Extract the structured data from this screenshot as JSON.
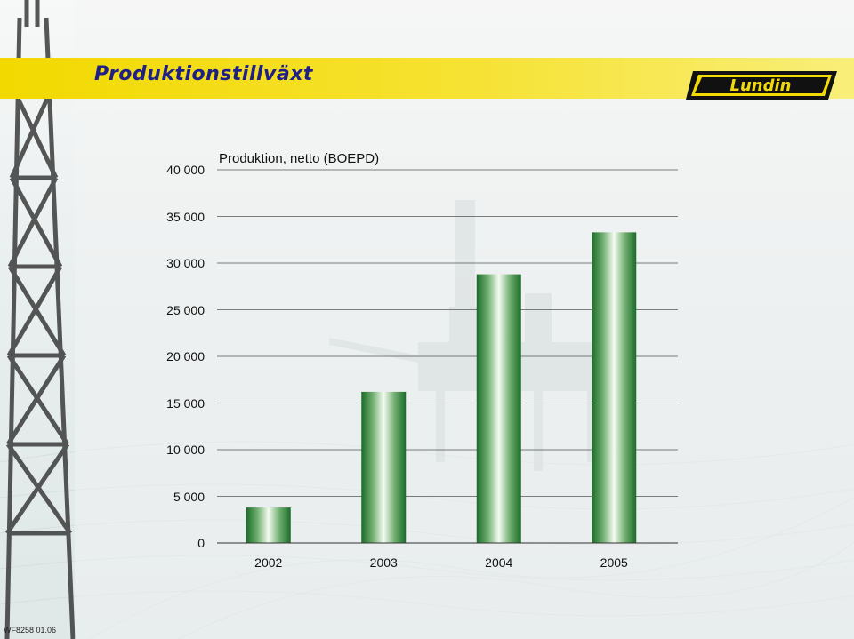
{
  "header": {
    "title": "Produktionstillväxt",
    "logo_text": "Lundin"
  },
  "footer": {
    "code": "WF8258 01.06"
  },
  "colors": {
    "banner": "#f2d900",
    "title_text": "#1f1f8a",
    "bar_dark": "#1c6b2a",
    "bar_light": "#f4fbf2"
  },
  "chart_data": {
    "type": "bar",
    "title": "Produktion, netto (BOEPD)",
    "xlabel": "",
    "ylabel": "",
    "categories": [
      "2002",
      "2003",
      "2004",
      "2005"
    ],
    "values": [
      3800,
      16200,
      28800,
      33300
    ],
    "ylim": [
      0,
      40000
    ],
    "yticks": [
      0,
      5000,
      10000,
      15000,
      20000,
      25000,
      30000,
      35000,
      40000
    ],
    "ytick_labels": [
      "0",
      "5 000",
      "10 000",
      "15 000",
      "20 000",
      "25 000",
      "30 000",
      "35 000",
      "40 000"
    ],
    "grid": true,
    "legend": "none"
  }
}
